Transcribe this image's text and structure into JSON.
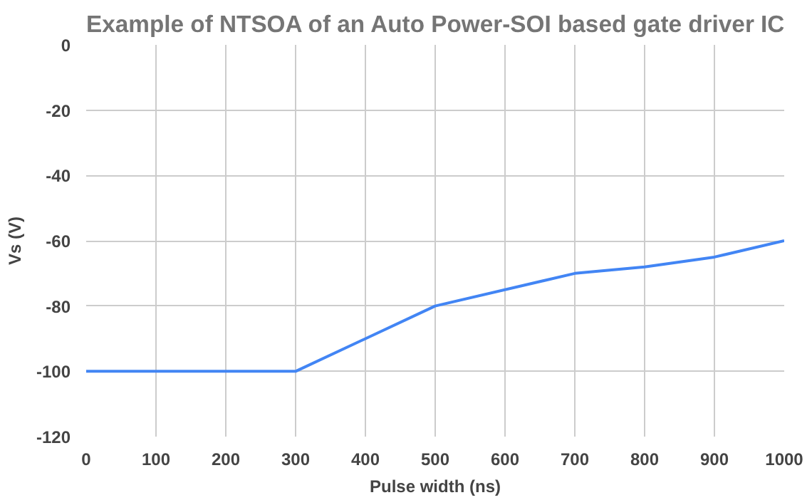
{
  "chart_data": {
    "type": "line",
    "title": "Example of NTSOA of an Auto Power-SOI based gate driver IC",
    "xlabel": "Pulse width (ns)",
    "ylabel": "Vs (V)",
    "x": [
      0,
      300,
      500,
      700,
      800,
      900,
      1000
    ],
    "series": [
      {
        "color": "#4285f4",
        "values": [
          -100,
          -100,
          -80,
          -70,
          -68,
          -65,
          -60
        ]
      }
    ],
    "xlim": [
      0,
      1000
    ],
    "xticks": [
      0,
      100,
      200,
      300,
      400,
      500,
      600,
      700,
      800,
      900,
      1000
    ],
    "ylim": [
      -120,
      0
    ],
    "yticks": [
      -120,
      -100,
      -80,
      -60,
      -40,
      -20,
      0
    ],
    "grid": true,
    "marker": "none",
    "line_style": "solid"
  }
}
